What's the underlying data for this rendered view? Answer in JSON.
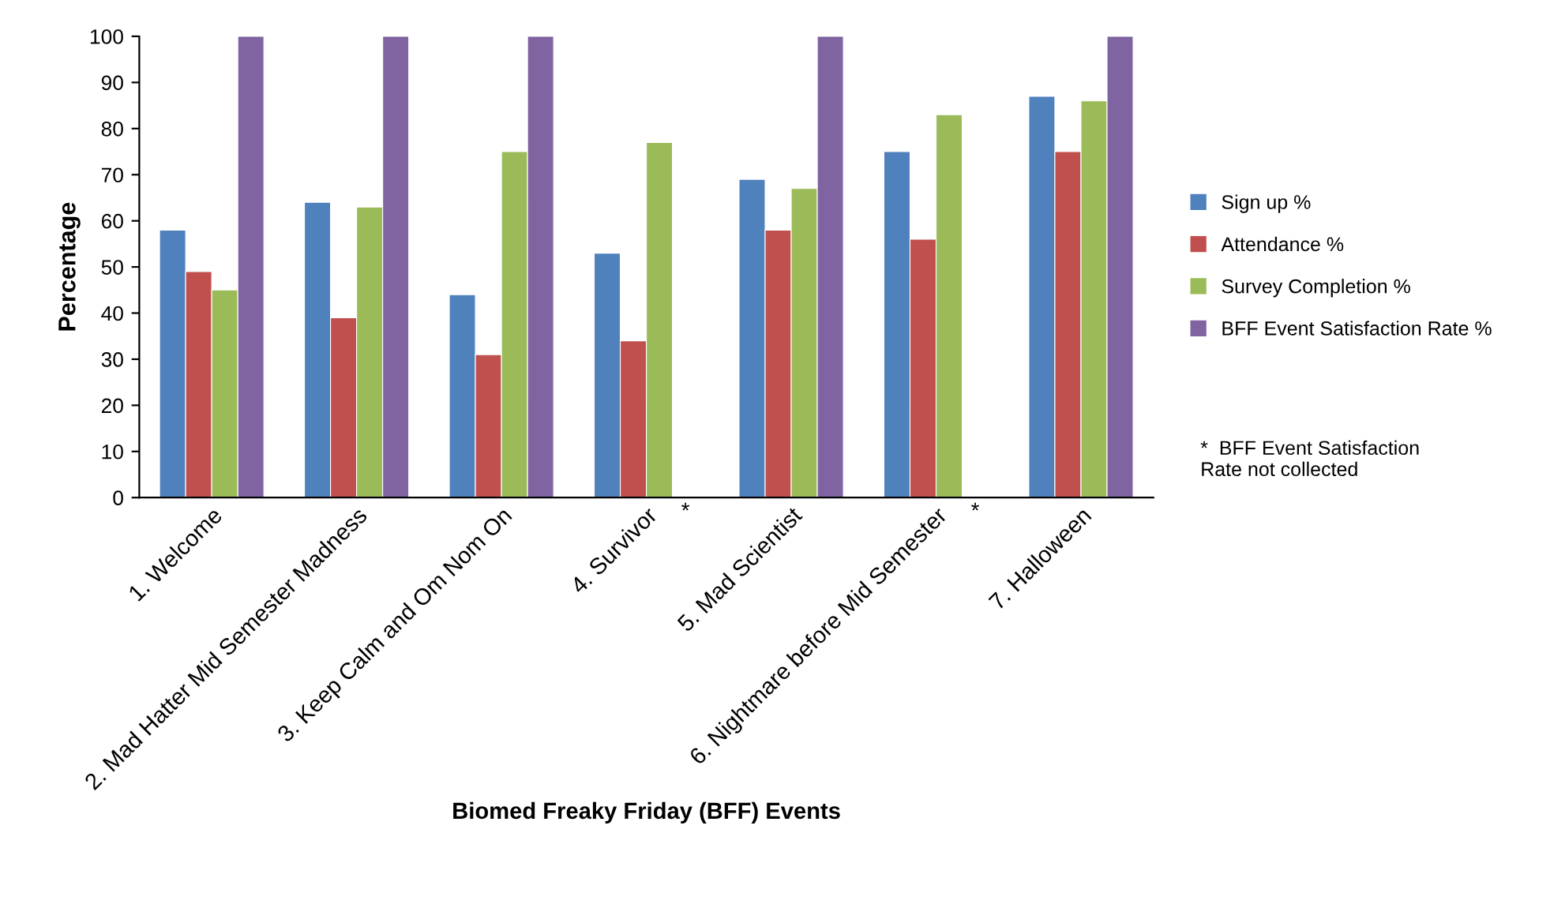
{
  "chart_data": {
    "type": "bar",
    "xlabel": "Biomed Freaky Friday (BFF) Events",
    "ylabel": "Percentage",
    "categories": [
      "1. Welcome",
      "2. Mad Hatter Mid Semester Madness",
      "3. Keep Calm and Om Nom On",
      "4. Survivor",
      "5. Mad Scientist",
      "6. Nightmare before Mid Semester",
      "7. Halloween"
    ],
    "series": [
      {
        "name": "Sign up %",
        "color": "#4f81bd",
        "values": [
          58,
          64,
          44,
          53,
          69,
          75,
          87
        ]
      },
      {
        "name": "Attendance %",
        "color": "#c0504d",
        "values": [
          49,
          39,
          31,
          34,
          58,
          56,
          75
        ]
      },
      {
        "name": "Survey Completion %",
        "color": "#9bbb59",
        "values": [
          45,
          63,
          75,
          77,
          67,
          83,
          86
        ]
      },
      {
        "name": "BFF Event Satisfaction Rate %",
        "color": "#8064a2",
        "values": [
          100,
          100,
          100,
          null,
          100,
          null,
          100
        ]
      }
    ],
    "ylim": [
      0,
      100
    ],
    "yticks": [
      0,
      10,
      20,
      30,
      40,
      50,
      60,
      70,
      80,
      90,
      100
    ],
    "grid": false,
    "legend": "right",
    "annotations": [
      {
        "text": "*",
        "x": "4. Survivor",
        "y": 0
      },
      {
        "text": "*",
        "x": "6. Nightmare before Mid Semester",
        "y": 0
      },
      "*  BFF Event Satisfaction\nRate not collected"
    ]
  }
}
